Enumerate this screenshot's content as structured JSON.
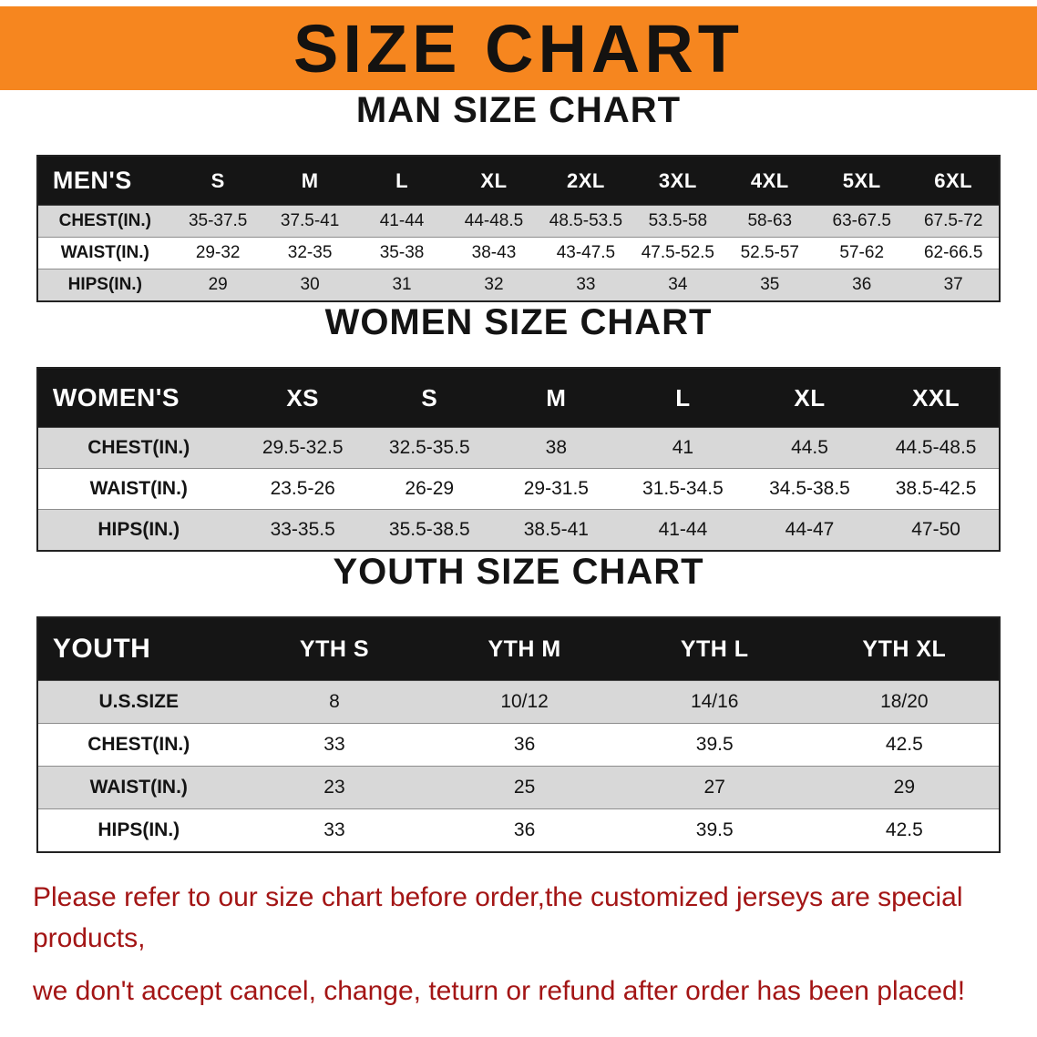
{
  "banner": {
    "title": "SIZE CHART",
    "bg_color": "#F6861F",
    "text_color": "#141210"
  },
  "sections": {
    "men": {
      "heading": "MAN SIZE CHART",
      "table": {
        "header": [
          "MEN'S",
          "S",
          "M",
          "L",
          "XL",
          "2XL",
          "3XL",
          "4XL",
          "5XL",
          "6XL"
        ],
        "rows": [
          [
            "CHEST(IN.)",
            "35-37.5",
            "37.5-41",
            "41-44",
            "44-48.5",
            "48.5-53.5",
            "53.5-58",
            "58-63",
            "63-67.5",
            "67.5-72"
          ],
          [
            "WAIST(IN.)",
            "29-32",
            "32-35",
            "35-38",
            "38-43",
            "43-47.5",
            "47.5-52.5",
            "52.5-57",
            "57-62",
            "62-66.5"
          ],
          [
            "HIPS(IN.)",
            "29",
            "30",
            "31",
            "32",
            "33",
            "34",
            "35",
            "36",
            "37"
          ]
        ]
      }
    },
    "women": {
      "heading": "WOMEN SIZE CHART",
      "table": {
        "header": [
          "WOMEN'S",
          "XS",
          "S",
          "M",
          "L",
          "XL",
          "XXL"
        ],
        "rows": [
          [
            "CHEST(IN.)",
            "29.5-32.5",
            "32.5-35.5",
            "38",
            "41",
            "44.5",
            "44.5-48.5"
          ],
          [
            "WAIST(IN.)",
            "23.5-26",
            "26-29",
            "29-31.5",
            "31.5-34.5",
            "34.5-38.5",
            "38.5-42.5"
          ],
          [
            "HIPS(IN.)",
            "33-35.5",
            "35.5-38.5",
            "38.5-41",
            "41-44",
            "44-47",
            "47-50"
          ]
        ]
      }
    },
    "youth": {
      "heading": "YOUTH SIZE CHART",
      "table": {
        "header": [
          "YOUTH",
          "YTH S",
          "YTH M",
          "YTH L",
          "YTH XL"
        ],
        "rows": [
          [
            "U.S.SIZE",
            "8",
            "10/12",
            "14/16",
            "18/20"
          ],
          [
            "CHEST(IN.)",
            "33",
            "36",
            "39.5",
            "42.5"
          ],
          [
            "WAIST(IN.)",
            "23",
            "25",
            "27",
            "29"
          ],
          [
            "HIPS(IN.)",
            "33",
            "36",
            "39.5",
            "42.5"
          ]
        ]
      }
    }
  },
  "footer": {
    "line1": "Please refer to our size chart before order,the customized jerseys are special products,",
    "line2": "we don't accept cancel, change, teturn or refund after order has been placed!",
    "text_color": "#A31515"
  }
}
